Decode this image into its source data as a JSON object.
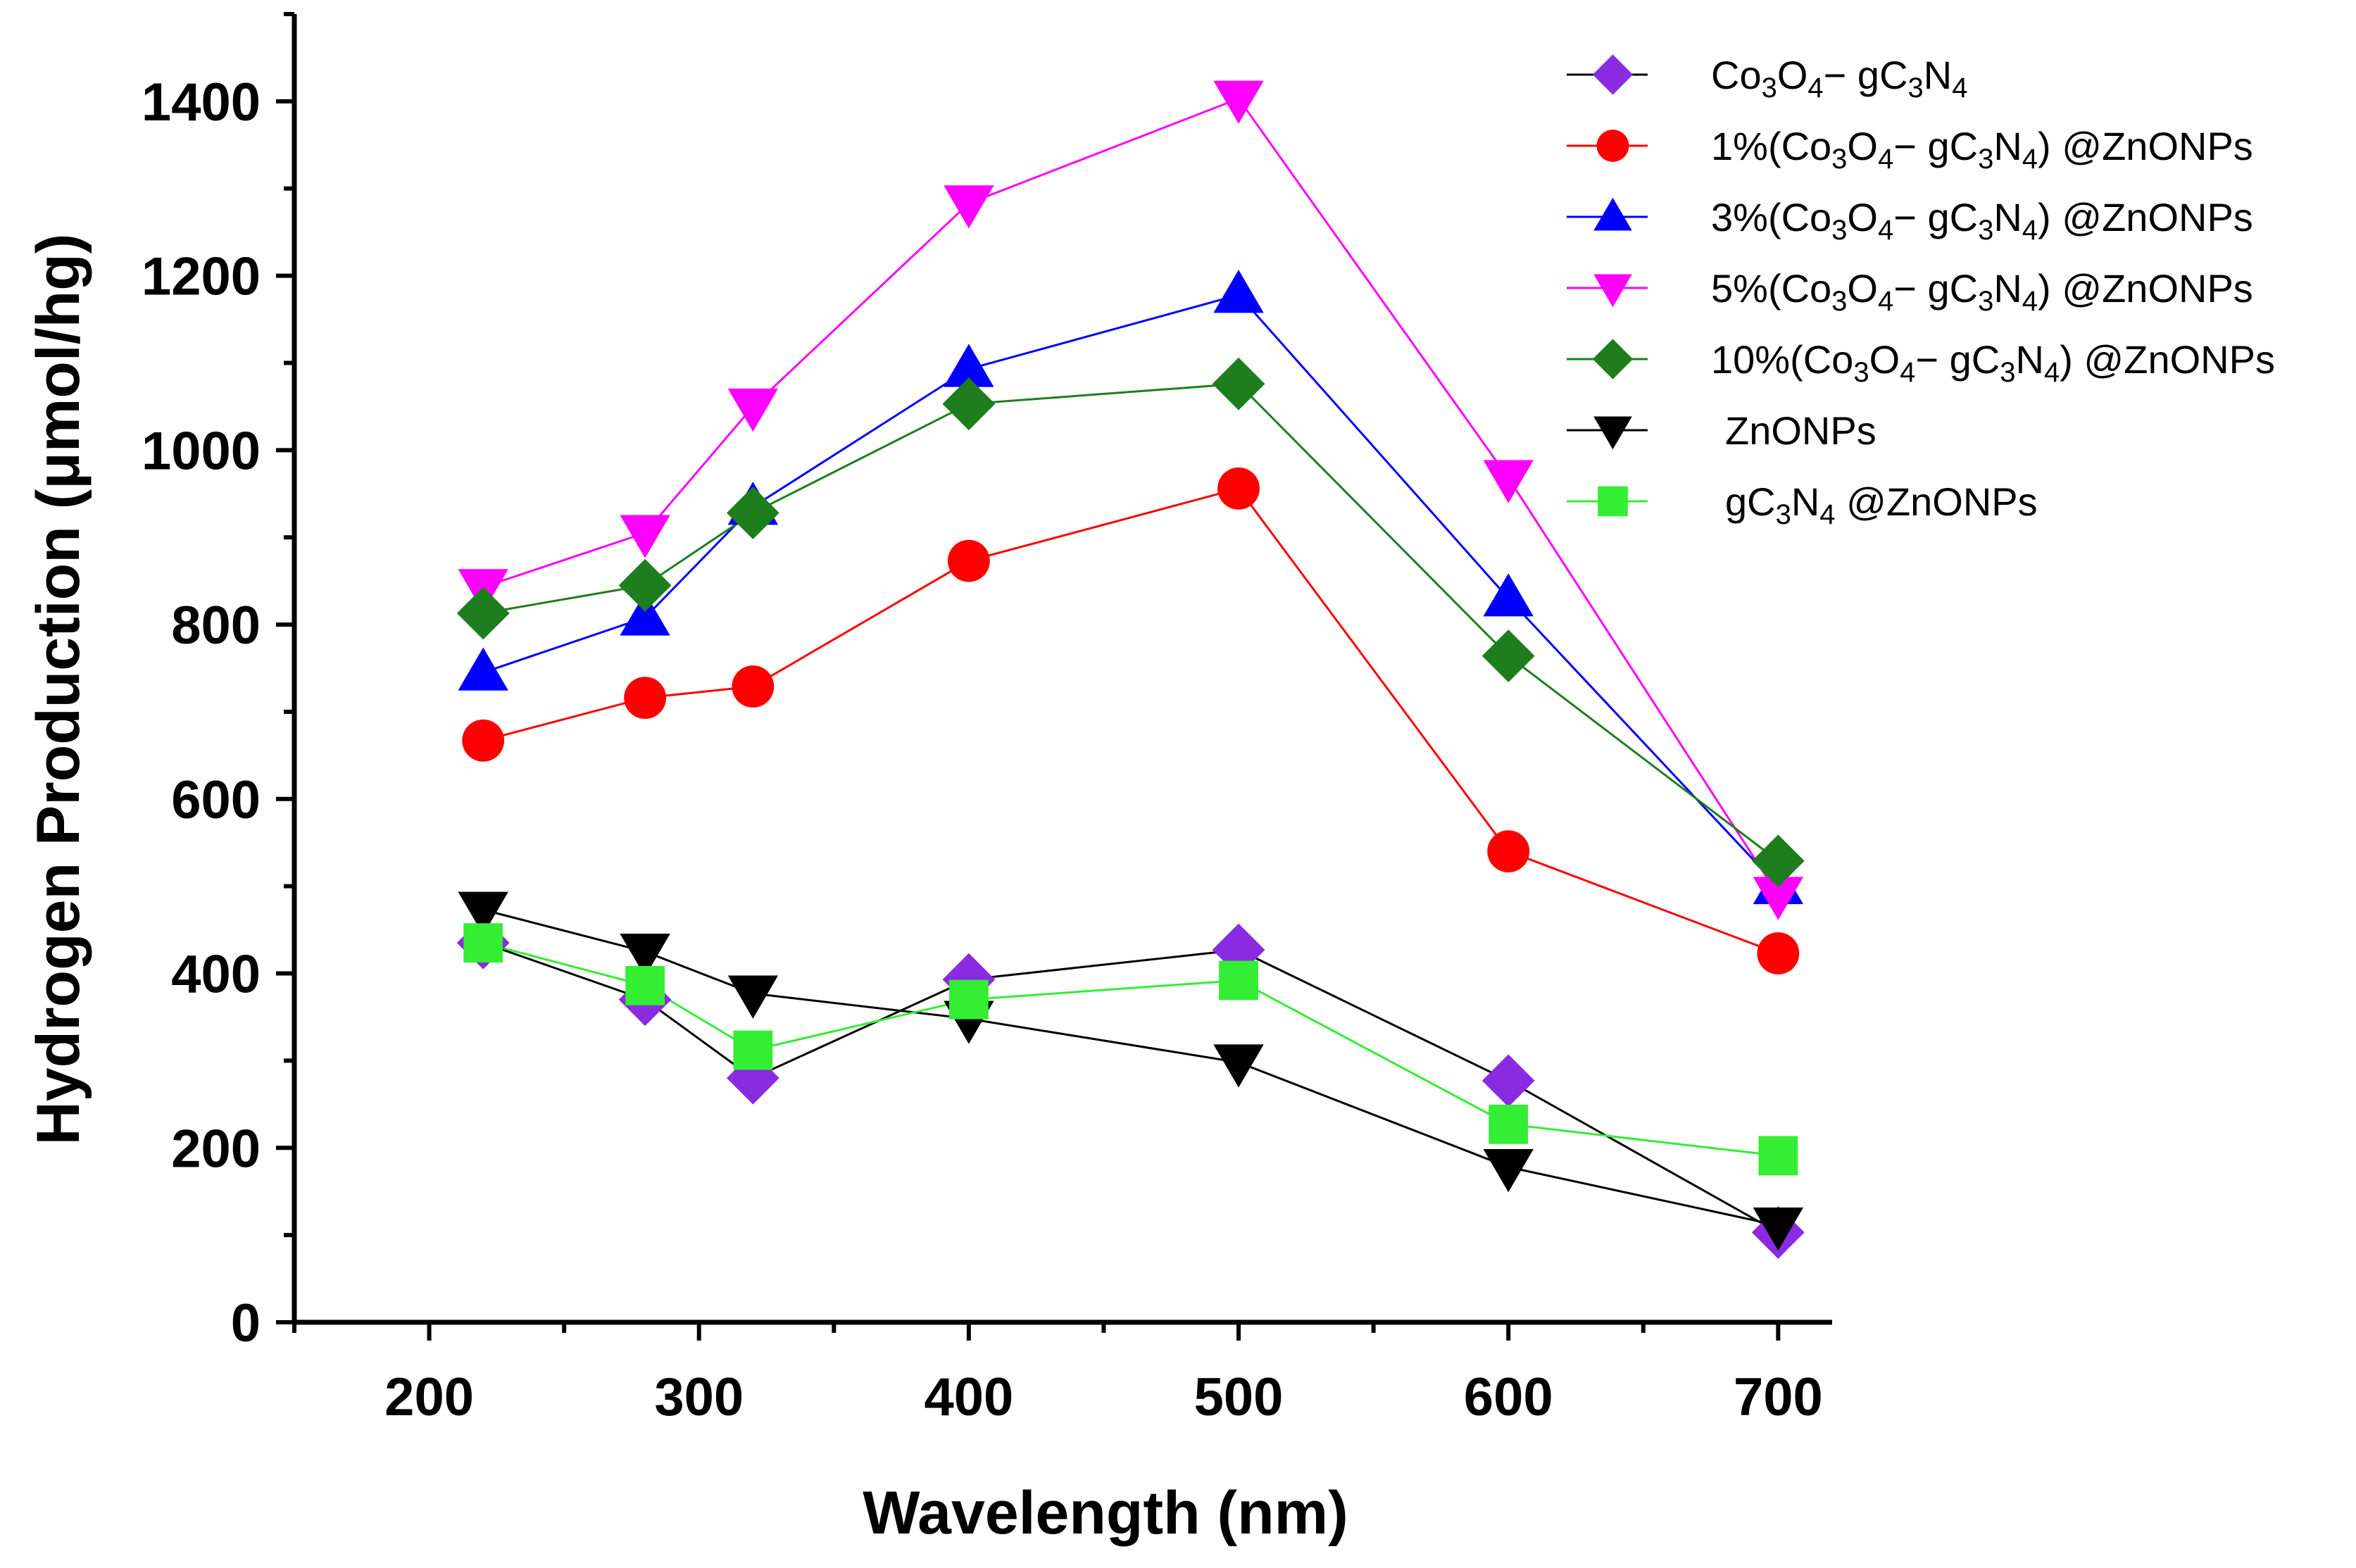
{
  "chart_data": {
    "type": "line",
    "title": "",
    "xlabel": "Wavelength (nm)",
    "ylabel": "Hydrogen Production (μmol/hg)",
    "xlim": [
      150,
      720
    ],
    "ylim": [
      0,
      1500
    ],
    "xticks": [
      200,
      300,
      400,
      500,
      600,
      700
    ],
    "yticks": [
      0,
      200,
      400,
      600,
      800,
      1000,
      1200,
      1400
    ],
    "xtick_labels": [
      "200",
      "300",
      "400",
      "500",
      "600",
      "700"
    ],
    "ytick_labels": [
      "0",
      "200",
      "400",
      "600",
      "800",
      "1000",
      "1200",
      "1400"
    ],
    "x": [
      220,
      280,
      320,
      400,
      500,
      600,
      700
    ],
    "legend_position": "top-right",
    "grid": false,
    "series": [
      {
        "key": "co3o4-gc3n4",
        "name": "Co3O4− gC3N4",
        "label_parts": [
          [
            "Co",
            ""
          ],
          [
            "3",
            "sub"
          ],
          [
            "O",
            ""
          ],
          [
            "4",
            "sub"
          ],
          [
            "− gC",
            ""
          ],
          [
            "3",
            "sub"
          ],
          [
            "N",
            ""
          ],
          [
            "4",
            "sub"
          ]
        ],
        "color": "#8a2be2",
        "line_color": "#000000",
        "marker": "diamond",
        "values": [
          435,
          370,
          280,
          393,
          427,
          277,
          103
        ]
      },
      {
        "key": "1pct",
        "name": "1%(Co3O4− gC3N4) @ZnONPs",
        "label_parts": [
          [
            "1%(Co",
            ""
          ],
          [
            "3",
            "sub"
          ],
          [
            "O",
            ""
          ],
          [
            "4",
            "sub"
          ],
          [
            "− gC",
            ""
          ],
          [
            "3",
            "sub"
          ],
          [
            "N",
            ""
          ],
          [
            "4",
            "sub"
          ],
          [
            ") @ZnONPs",
            ""
          ]
        ],
        "color": "#ff0000",
        "line_color": "#ff0000",
        "marker": "circle",
        "values": [
          667,
          716,
          729,
          873,
          956,
          540,
          423
        ]
      },
      {
        "key": "3pct",
        "name": "3%(Co3O4− gC3N4) @ZnONPs",
        "label_parts": [
          [
            "3%(Co",
            ""
          ],
          [
            "3",
            "sub"
          ],
          [
            "O",
            ""
          ],
          [
            "4",
            "sub"
          ],
          [
            "− gC",
            ""
          ],
          [
            "3",
            "sub"
          ],
          [
            "N",
            ""
          ],
          [
            "4",
            "sub"
          ],
          [
            ") @ZnONPs",
            ""
          ]
        ],
        "color": "#0000ff",
        "line_color": "#0000ff",
        "marker": "triangle-up",
        "values": [
          745,
          808,
          935,
          1093,
          1178,
          830,
          500
        ]
      },
      {
        "key": "5pct",
        "name": "5%(Co3O4− gC3N4) @ZnONPs",
        "label_parts": [
          [
            "5%(Co",
            ""
          ],
          [
            "3",
            "sub"
          ],
          [
            "O",
            ""
          ],
          [
            "4",
            "sub"
          ],
          [
            "− gC",
            ""
          ],
          [
            "3",
            "sub"
          ],
          [
            "N",
            ""
          ],
          [
            "4",
            "sub"
          ],
          [
            ") @ZnONPs",
            ""
          ]
        ],
        "color": "#ff00ff",
        "line_color": "#ff00ff",
        "marker": "triangle-down",
        "values": [
          843,
          905,
          1050,
          1283,
          1403,
          968,
          490
        ]
      },
      {
        "key": "10pct",
        "name": "10%(Co3O4− gC3N4) @ZnONPs",
        "label_parts": [
          [
            "10%(Co",
            ""
          ],
          [
            "3",
            "sub"
          ],
          [
            "O",
            ""
          ],
          [
            "4",
            "sub"
          ],
          [
            "− gC",
            ""
          ],
          [
            "3",
            "sub"
          ],
          [
            "N",
            ""
          ],
          [
            "4",
            "sub"
          ],
          [
            ") @ZnONPs",
            ""
          ]
        ],
        "color": "#1e7e1e",
        "line_color": "#1e7e1e",
        "marker": "diamond",
        "values": [
          813,
          845,
          928,
          1053,
          1076,
          764,
          529
        ]
      },
      {
        "key": "znonps",
        "name": "ZnONPs",
        "label_parts": [
          [
            "ZnONPs",
            ""
          ]
        ],
        "color": "#000000",
        "line_color": "#000000",
        "marker": "triangle-down",
        "values": [
          473,
          425,
          377,
          348,
          298,
          178,
          111
        ]
      },
      {
        "key": "gc3n4-znonps",
        "name": "gC3N4 @ZnONPs",
        "label_parts": [
          [
            "gC",
            ""
          ],
          [
            "3",
            "sub"
          ],
          [
            "N",
            ""
          ],
          [
            "4",
            "sub"
          ],
          [
            "  @ZnONPs",
            ""
          ]
        ],
        "color": "#33ee33",
        "line_color": "#33ee33",
        "marker": "square",
        "values": [
          435,
          386,
          312,
          370,
          392,
          227,
          191
        ]
      }
    ]
  }
}
